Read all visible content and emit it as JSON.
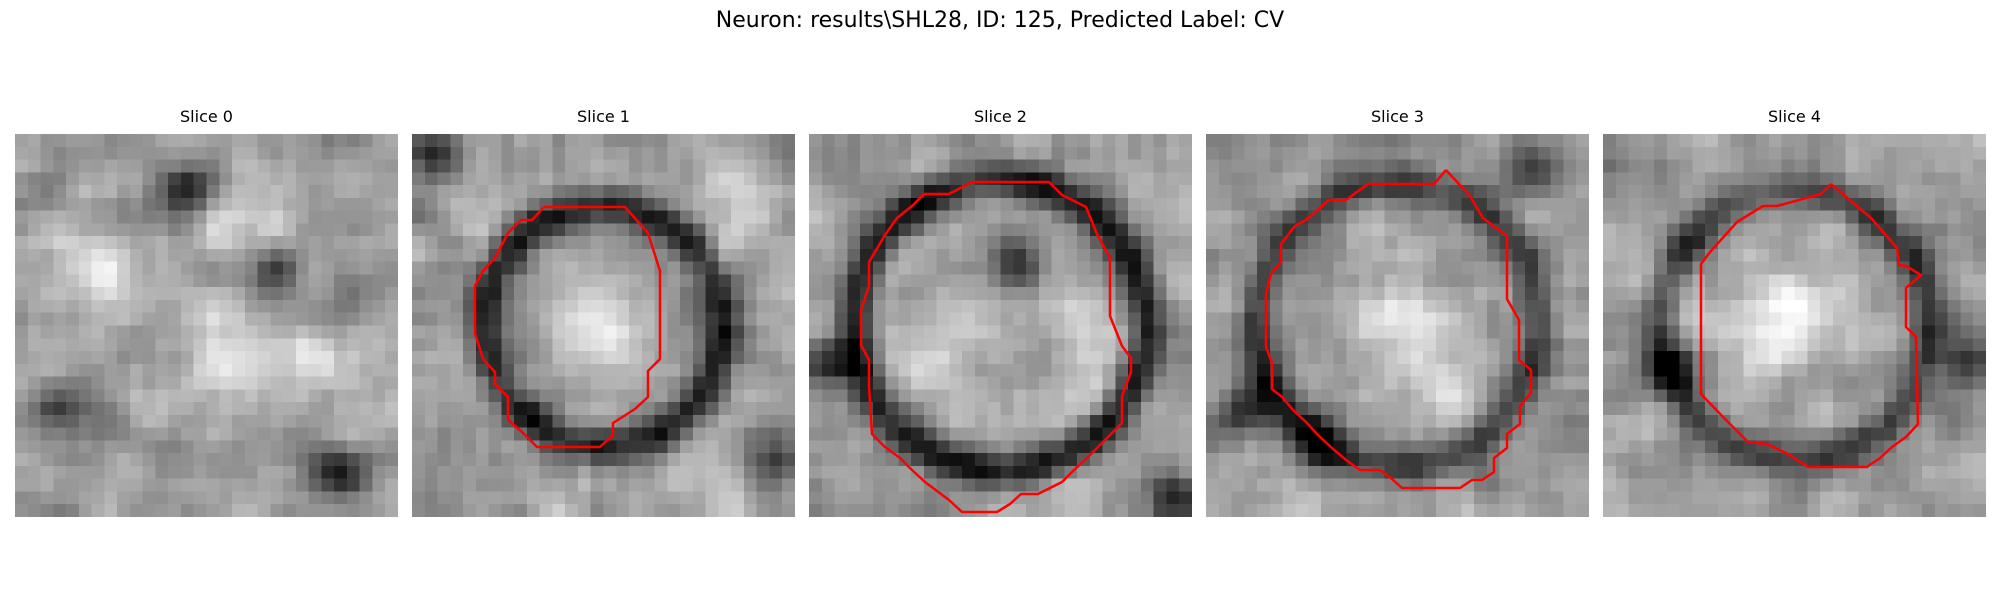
{
  "figure": {
    "title": "Neuron: results\\SHL28, ID: 125, Predicted Label: CV"
  },
  "panels": [
    {
      "title": "Slice 0",
      "has_contour": false,
      "seed": 11,
      "ring": 0.15,
      "ring_radius": 0.36,
      "dark_blobs": [
        [
          0.68,
          0.36
        ],
        [
          0.12,
          0.72
        ],
        [
          0.45,
          0.15
        ],
        [
          0.85,
          0.88
        ]
      ],
      "light_blobs": [
        [
          0.82,
          0.62
        ],
        [
          0.2,
          0.35
        ],
        [
          0.55,
          0.55
        ],
        [
          0.6,
          0.2
        ]
      ]
    },
    {
      "title": "Slice 1",
      "has_contour": true,
      "seed": 23,
      "ring": 0.9,
      "ring_radius": 0.31,
      "dark_blobs": [
        [
          0.95,
          0.85
        ],
        [
          0.05,
          0.05
        ]
      ],
      "light_blobs": [
        [
          0.5,
          0.5
        ],
        [
          0.85,
          0.2
        ]
      ]
    },
    {
      "title": "Slice 2",
      "has_contour": true,
      "seed": 37,
      "ring": 0.95,
      "ring_radius": 0.38,
      "dark_blobs": [
        [
          0.55,
          0.35
        ],
        [
          0.05,
          0.6
        ],
        [
          0.95,
          0.95
        ]
      ],
      "light_blobs": [
        [
          0.75,
          0.55
        ],
        [
          0.35,
          0.55
        ]
      ]
    },
    {
      "title": "Slice 3",
      "has_contour": true,
      "seed": 53,
      "ring": 0.75,
      "ring_radius": 0.37,
      "dark_blobs": [
        [
          0.85,
          0.1
        ],
        [
          0.1,
          0.72
        ],
        [
          0.3,
          0.8
        ]
      ],
      "light_blobs": [
        [
          0.5,
          0.5
        ],
        [
          0.6,
          0.65
        ]
      ]
    },
    {
      "title": "Slice 4",
      "has_contour": true,
      "seed": 71,
      "ring": 0.7,
      "ring_radius": 0.35,
      "dark_blobs": [
        [
          0.18,
          0.6
        ],
        [
          0.95,
          0.6
        ]
      ],
      "light_blobs": [
        [
          0.4,
          0.5
        ],
        [
          0.5,
          0.45
        ]
      ]
    }
  ],
  "colors": {
    "contour": "#ff0000",
    "background": "#ffffff"
  }
}
